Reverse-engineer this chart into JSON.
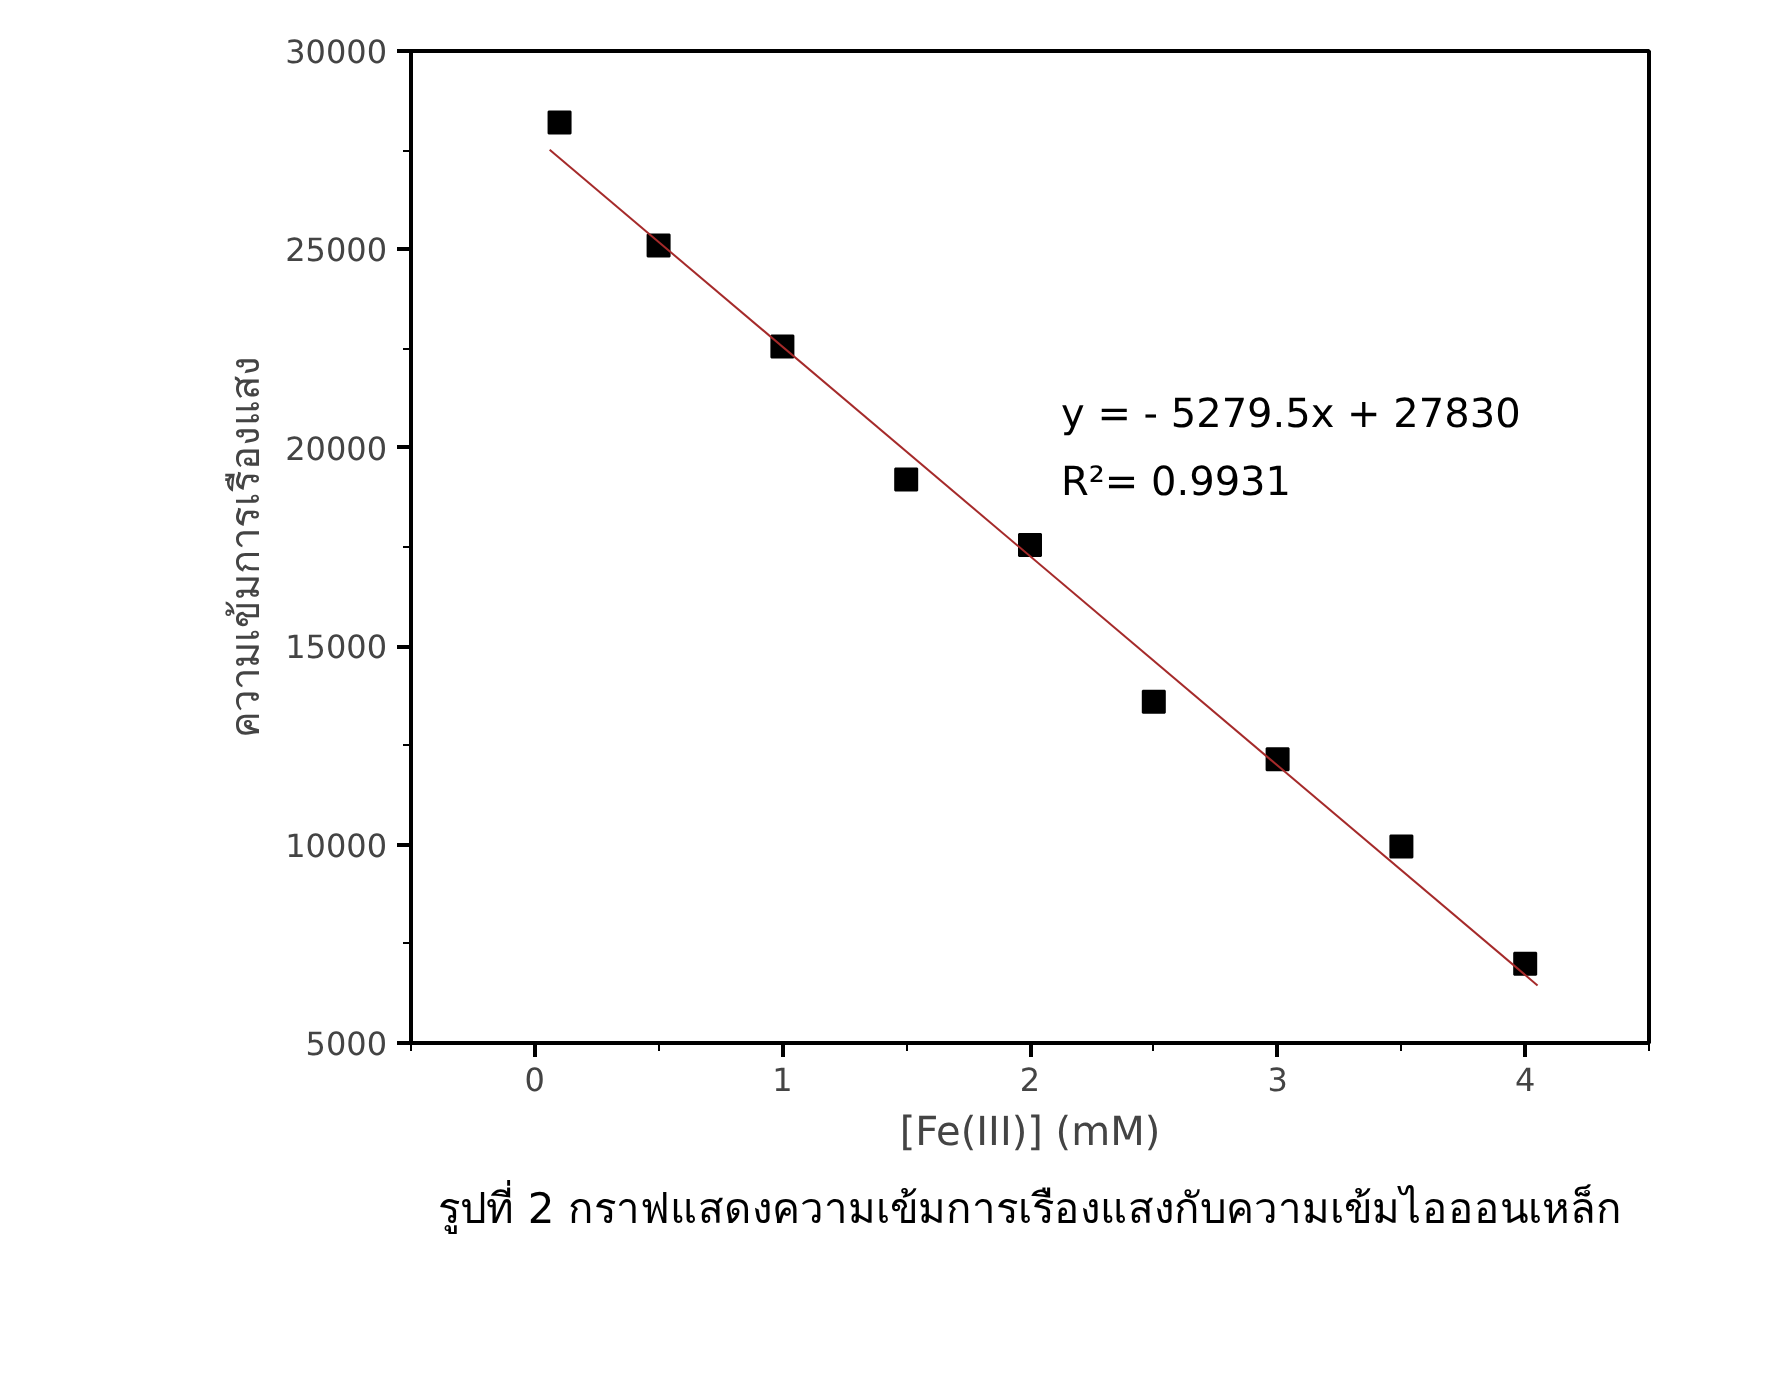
{
  "chart_data": {
    "type": "scatter",
    "xlabel": "[Fe(III)] (mM)",
    "ylabel": "ความเข้มการเรืองแสง",
    "x": [
      0.1,
      0.5,
      1,
      1.5,
      2,
      2.5,
      3,
      3.5,
      4
    ],
    "series": [
      {
        "type": "scatter",
        "color": "#000000",
        "marker": "square",
        "values": [
          28200,
          25100,
          22550,
          19200,
          17550,
          13600,
          12150,
          9950,
          7000
        ]
      },
      {
        "type": "line",
        "color": "#a52a2a",
        "marker": "none",
        "line_style": "solid",
        "x": [
          0.06,
          4.05
        ],
        "values": [
          27510,
          6450
        ]
      }
    ],
    "xlim": [
      -0.5,
      4.5
    ],
    "xticks": [
      0,
      1,
      2,
      3,
      4
    ],
    "ylim": [
      5000,
      30000
    ],
    "yticks": [
      5000,
      10000,
      15000,
      20000,
      25000,
      30000
    ],
    "grid": false,
    "annotations": [
      "y = - 5279.5x + 27830",
      "R²= 0.9931",
      "รูปที่ 2 กราฟแสดงความเข้มการเรืองแสงกับความเข้มไอออนเหล็ก"
    ]
  }
}
